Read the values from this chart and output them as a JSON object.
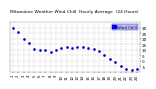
{
  "title": "Milwaukee Weather Wind Chill  Hourly Average  (24 Hours)",
  "title_fontsize": 3.2,
  "background_color": "#ffffff",
  "plot_bg_color": "#ffffff",
  "grid_color": "#aaaaaa",
  "line_color": "#0000cc",
  "legend_text": "Wind Chill",
  "legend_color": "#0000ff",
  "hours": [
    1,
    2,
    3,
    4,
    5,
    6,
    7,
    8,
    9,
    10,
    11,
    12,
    13,
    14,
    15,
    16,
    17,
    18,
    19,
    20,
    21,
    22,
    23,
    24
  ],
  "values": [
    30,
    26,
    20,
    16,
    11,
    10,
    10,
    8,
    10,
    12,
    13,
    12,
    13,
    13,
    12,
    11,
    9,
    5,
    2,
    -1,
    -5,
    -7,
    -8,
    -7
  ],
  "ylim": [
    -10,
    35
  ],
  "yticks": [
    -5,
    0,
    5,
    10,
    15,
    20,
    25,
    30
  ],
  "ytick_labels": [
    "-5",
    "0",
    "5",
    "10",
    "15",
    "20",
    "25",
    "30"
  ],
  "ytick_fontsize": 3.0,
  "xtick_fontsize": 2.8
}
